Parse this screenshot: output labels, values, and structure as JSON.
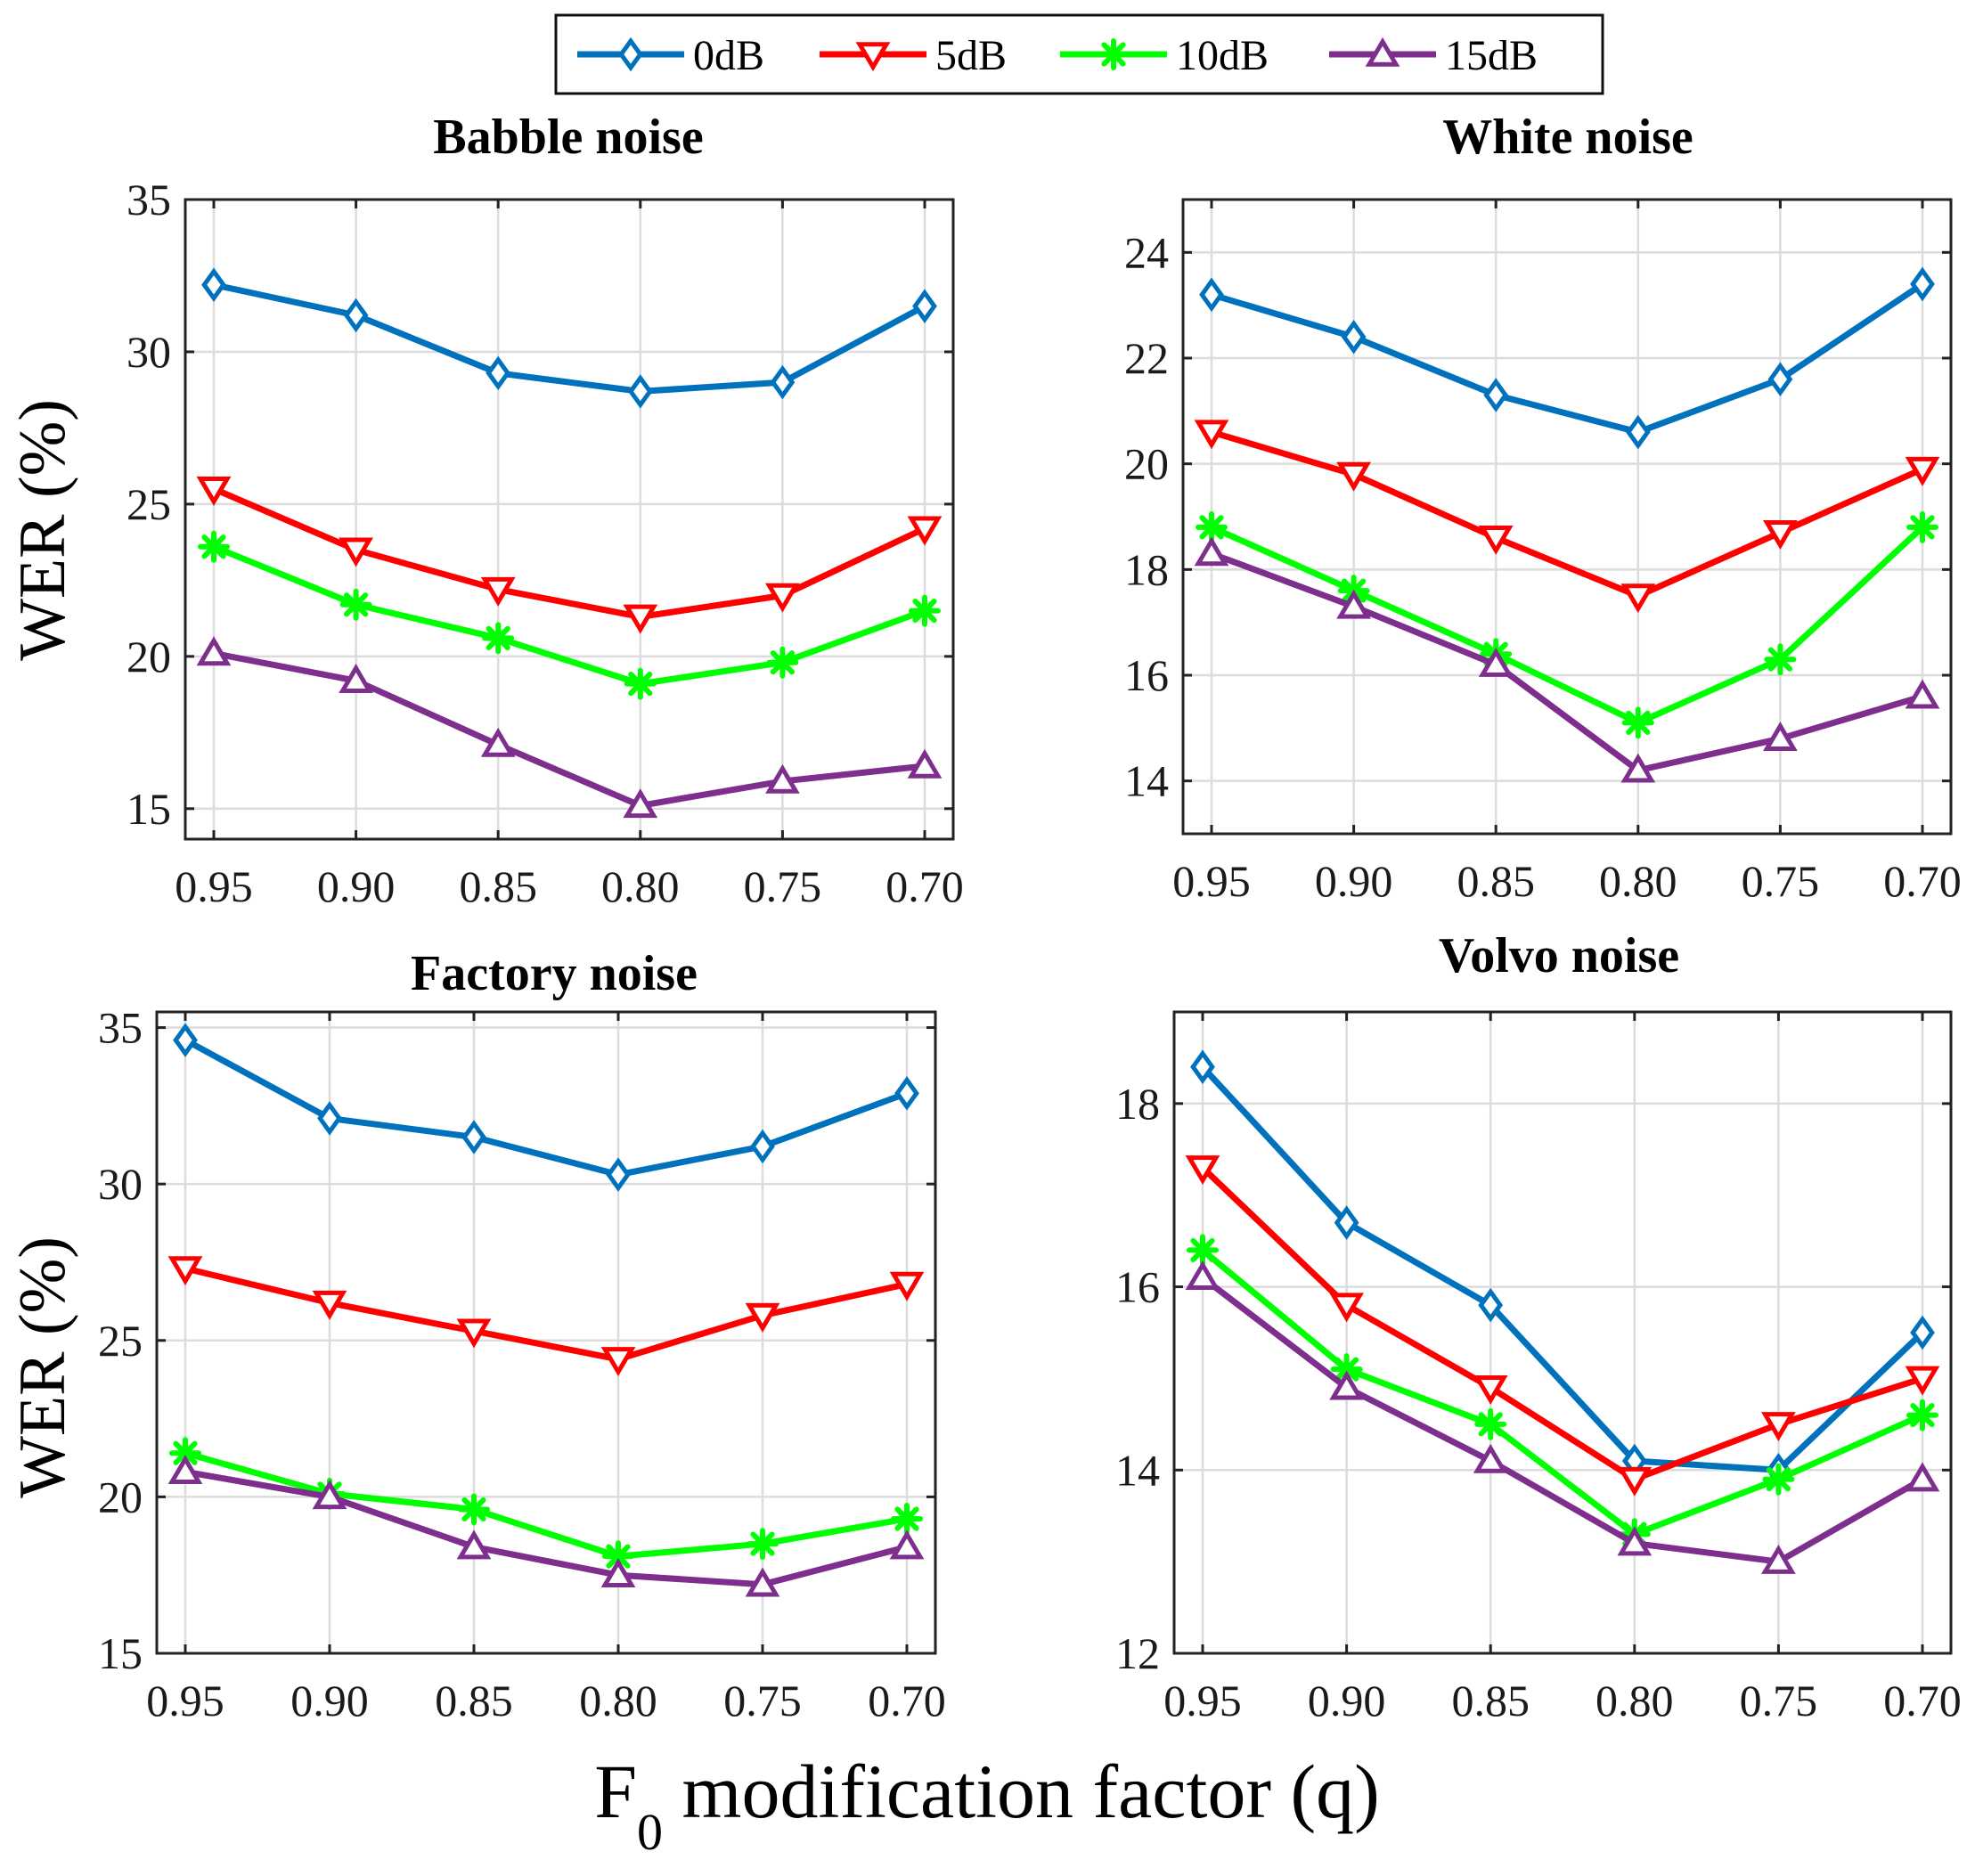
{
  "chart_data": {
    "type": "line",
    "legend": {
      "placement": "top-center",
      "entries": [
        "0dB",
        "5dB",
        "10dB",
        "15dB"
      ],
      "colors": [
        "#0072BD",
        "#FF0000",
        "#00FF00",
        "#7E2F8E"
      ],
      "markers": [
        "diamond",
        "triangle-down",
        "asterisk",
        "triangle-up"
      ]
    },
    "shared_xlabel_main": "F",
    "shared_xlabel_sub": "0",
    "shared_xlabel_rest": " modification factor (q)",
    "shared_ylabel": "WER (%)",
    "x_tick_labels": [
      "0.95",
      "0.90",
      "0.85",
      "0.80",
      "0.75",
      "0.70"
    ],
    "x": [
      0.95,
      0.9,
      0.85,
      0.8,
      0.75,
      0.7
    ],
    "panels": [
      {
        "title": "Babble noise",
        "ylim": [
          14,
          35
        ],
        "yticks": [
          15,
          20,
          25,
          30,
          35
        ],
        "show_ylabel": true,
        "series": [
          {
            "name": "0dB",
            "values": [
              32.2,
              31.2,
              29.3,
              28.7,
              29.0,
              31.5
            ]
          },
          {
            "name": "5dB",
            "values": [
              25.5,
              23.5,
              22.2,
              21.3,
              22.0,
              24.2
            ]
          },
          {
            "name": "10dB",
            "values": [
              23.6,
              21.7,
              20.6,
              19.1,
              19.8,
              21.5
            ]
          },
          {
            "name": "15dB",
            "values": [
              20.1,
              19.2,
              17.1,
              15.1,
              15.9,
              16.4
            ]
          }
        ]
      },
      {
        "title": "White noise",
        "ylim": [
          13,
          25
        ],
        "yticks": [
          14,
          16,
          18,
          20,
          22,
          24
        ],
        "show_ylabel": false,
        "series": [
          {
            "name": "0dB",
            "values": [
              23.2,
              22.4,
              21.3,
              20.6,
              21.6,
              23.4
            ]
          },
          {
            "name": "5dB",
            "values": [
              20.6,
              19.8,
              18.6,
              17.5,
              18.7,
              19.9
            ]
          },
          {
            "name": "10dB",
            "values": [
              18.8,
              17.6,
              16.4,
              15.1,
              16.3,
              18.8
            ]
          },
          {
            "name": "15dB",
            "values": [
              18.3,
              17.3,
              16.2,
              14.2,
              14.8,
              15.6
            ]
          }
        ]
      },
      {
        "title": "Factory noise",
        "ylim": [
          15,
          35.5
        ],
        "yticks": [
          15,
          20,
          25,
          30,
          35
        ],
        "show_ylabel": true,
        "series": [
          {
            "name": "0dB",
            "values": [
              34.6,
              32.1,
              31.5,
              30.3,
              31.2,
              32.9
            ]
          },
          {
            "name": "5dB",
            "values": [
              27.3,
              26.2,
              25.3,
              24.4,
              25.8,
              26.8
            ]
          },
          {
            "name": "10dB",
            "values": [
              21.4,
              20.1,
              19.6,
              18.1,
              18.5,
              19.3
            ]
          },
          {
            "name": "15dB",
            "values": [
              20.8,
              20.0,
              18.4,
              17.5,
              17.2,
              18.4
            ]
          }
        ]
      },
      {
        "title": "Volvo noise",
        "ylim": [
          12,
          19
        ],
        "yticks": [
          12,
          14,
          16,
          18
        ],
        "show_ylabel": false,
        "series": [
          {
            "name": "0dB",
            "values": [
              18.4,
              16.7,
              15.8,
              14.1,
              14.0,
              15.5
            ]
          },
          {
            "name": "5dB",
            "values": [
              17.3,
              15.8,
              14.9,
              13.9,
              14.5,
              15.0
            ]
          },
          {
            "name": "10dB",
            "values": [
              16.4,
              15.1,
              14.5,
              13.3,
              13.9,
              14.6
            ]
          },
          {
            "name": "15dB",
            "values": [
              16.1,
              14.9,
              14.1,
              13.2,
              13.0,
              13.9
            ]
          }
        ]
      }
    ]
  }
}
